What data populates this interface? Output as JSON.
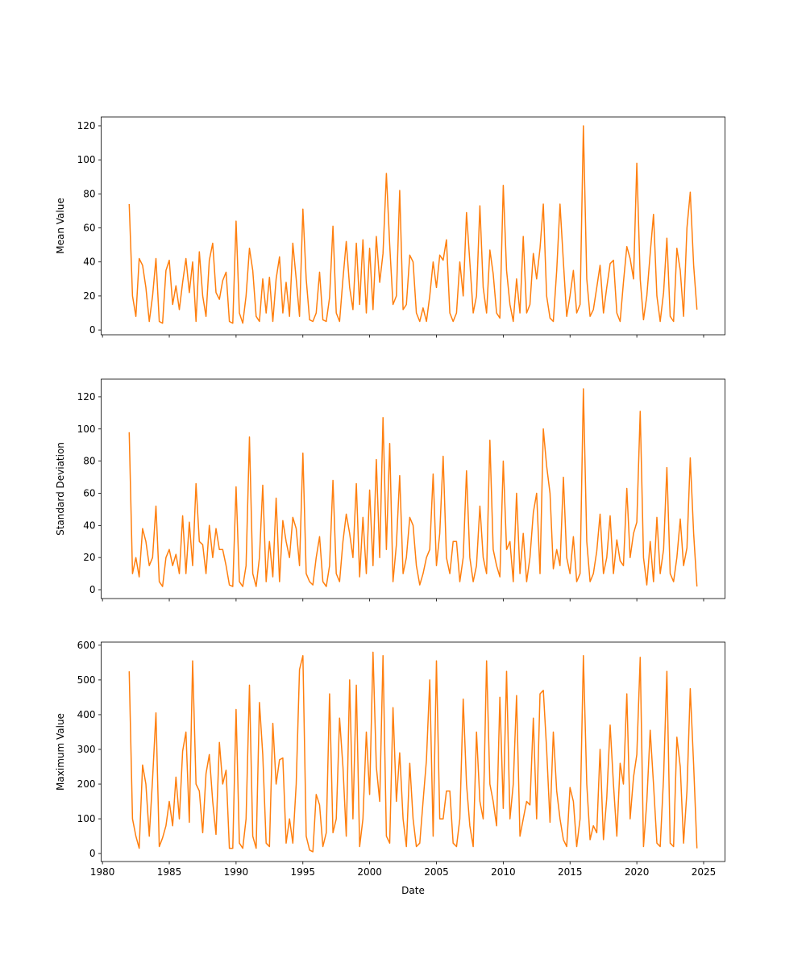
{
  "chart_data": {
    "type": "line",
    "layout": "3 stacked subplots, shared x-axis",
    "line_color": "#ff7f0e",
    "grid": false,
    "xlabel": "Date",
    "x_ticks": [
      "1980",
      "1985",
      "1990",
      "1995",
      "2000",
      "2005",
      "2010",
      "2015",
      "2020",
      "2025"
    ],
    "xlim": [
      1979.9,
      2026.6
    ],
    "dates": [
      "1982-01",
      "1982-04",
      "1982-07",
      "1982-10",
      "1983-01",
      "1983-04",
      "1983-07",
      "1983-10",
      "1984-01",
      "1984-04",
      "1984-07",
      "1984-10",
      "1985-01",
      "1985-04",
      "1985-07",
      "1985-10",
      "1986-01",
      "1986-04",
      "1986-07",
      "1986-10",
      "1987-01",
      "1987-04",
      "1987-07",
      "1987-10",
      "1988-01",
      "1988-04",
      "1988-07",
      "1988-10",
      "1989-01",
      "1989-04",
      "1989-07",
      "1989-10",
      "1990-01",
      "1990-04",
      "1990-07",
      "1990-10",
      "1991-01",
      "1991-04",
      "1991-07",
      "1991-10",
      "1992-01",
      "1992-04",
      "1992-07",
      "1992-10",
      "1993-01",
      "1993-04",
      "1993-07",
      "1993-10",
      "1994-01",
      "1994-04",
      "1994-07",
      "1994-10",
      "1995-01",
      "1995-04",
      "1995-07",
      "1995-10",
      "1996-01",
      "1996-04",
      "1996-07",
      "1996-10",
      "1997-01",
      "1997-04",
      "1997-07",
      "1997-10",
      "1998-01",
      "1998-04",
      "1998-07",
      "1998-10",
      "1999-01",
      "1999-04",
      "1999-07",
      "1999-10",
      "2000-01",
      "2000-04",
      "2000-07",
      "2000-10",
      "2001-01",
      "2001-04",
      "2001-07",
      "2001-10",
      "2002-01",
      "2002-04",
      "2002-07",
      "2002-10",
      "2003-01",
      "2003-04",
      "2003-07",
      "2003-10",
      "2004-01",
      "2004-04",
      "2004-07",
      "2004-10",
      "2005-01",
      "2005-04",
      "2005-07",
      "2005-10",
      "2006-01",
      "2006-04",
      "2006-07",
      "2006-10",
      "2007-01",
      "2007-04",
      "2007-07",
      "2007-10",
      "2008-01",
      "2008-04",
      "2008-07",
      "2008-10",
      "2009-01",
      "2009-04",
      "2009-07",
      "2009-10",
      "2010-01",
      "2010-04",
      "2010-07",
      "2010-10",
      "2011-01",
      "2011-04",
      "2011-07",
      "2011-10",
      "2012-01",
      "2012-04",
      "2012-07",
      "2012-10",
      "2013-01",
      "2013-04",
      "2013-07",
      "2013-10",
      "2014-01",
      "2014-04",
      "2014-07",
      "2014-10",
      "2015-01",
      "2015-04",
      "2015-07",
      "2015-10",
      "2016-01",
      "2016-04",
      "2016-07",
      "2016-10",
      "2017-01",
      "2017-04",
      "2017-07",
      "2017-10",
      "2018-01",
      "2018-04",
      "2018-07",
      "2018-10",
      "2019-01",
      "2019-04",
      "2019-07",
      "2019-10",
      "2020-01",
      "2020-04",
      "2020-07",
      "2020-10",
      "2021-01",
      "2021-04",
      "2021-07",
      "2021-10",
      "2022-01",
      "2022-04",
      "2022-07",
      "2022-10",
      "2023-01",
      "2023-04",
      "2023-07",
      "2023-10",
      "2024-01",
      "2024-04",
      "2024-07"
    ],
    "panels": [
      {
        "ylabel": "Mean Value",
        "ylim": [
          -2.8,
          125.2
        ],
        "y_ticks": [
          "0",
          "20",
          "40",
          "60",
          "80",
          "100",
          "120"
        ],
        "values": [
          74,
          20,
          8,
          42,
          38,
          25,
          5,
          20,
          42,
          5,
          4,
          35,
          41,
          15,
          26,
          12,
          28,
          42,
          22,
          40,
          5,
          46,
          20,
          8,
          41,
          51,
          22,
          18,
          29,
          34,
          5,
          4,
          64,
          10,
          4,
          20,
          48,
          35,
          8,
          5,
          30,
          10,
          31,
          5,
          30,
          43,
          10,
          28,
          8,
          51,
          30,
          8,
          71,
          30,
          6,
          5,
          10,
          34,
          6,
          5,
          19,
          61,
          10,
          5,
          30,
          52,
          25,
          12,
          51,
          15,
          53,
          10,
          48,
          12,
          55,
          28,
          45,
          92,
          50,
          15,
          20,
          82,
          12,
          15,
          44,
          40,
          10,
          5,
          13,
          5,
          20,
          40,
          25,
          44,
          41,
          53,
          10,
          5,
          10,
          40,
          20,
          69,
          40,
          10,
          20,
          73,
          25,
          10,
          47,
          33,
          10,
          7,
          85,
          35,
          15,
          5,
          30,
          10,
          55,
          10,
          15,
          45,
          30,
          48,
          74,
          20,
          7,
          5,
          35,
          74,
          40,
          8,
          20,
          35,
          10,
          15,
          120,
          30,
          8,
          12,
          25,
          38,
          10,
          25,
          39,
          41,
          10,
          5,
          28,
          49,
          42,
          30,
          98,
          30,
          6,
          20,
          45,
          68,
          20,
          5,
          22,
          54,
          8,
          5,
          48,
          35,
          8,
          60,
          81,
          38,
          12
        ]
      },
      {
        "ylabel": "Standard Deviation",
        "ylim": [
          -5.5,
          131
        ],
        "y_ticks": [
          "0",
          "20",
          "40",
          "60",
          "80",
          "100",
          "120"
        ],
        "values": [
          98,
          10,
          20,
          8,
          38,
          30,
          15,
          20,
          52,
          5,
          2,
          20,
          25,
          15,
          22,
          10,
          46,
          10,
          42,
          15,
          66,
          30,
          28,
          10,
          40,
          20,
          38,
          25,
          25,
          15,
          3,
          2,
          64,
          5,
          2,
          15,
          95,
          10,
          2,
          20,
          65,
          5,
          30,
          8,
          57,
          5,
          43,
          30,
          20,
          45,
          38,
          15,
          85,
          10,
          5,
          3,
          20,
          33,
          5,
          2,
          15,
          68,
          10,
          5,
          30,
          47,
          35,
          20,
          66,
          8,
          45,
          10,
          62,
          15,
          81,
          20,
          107,
          25,
          91,
          5,
          28,
          71,
          10,
          20,
          45,
          40,
          15,
          3,
          10,
          20,
          25,
          72,
          15,
          35,
          83,
          20,
          10,
          30,
          30,
          5,
          20,
          74,
          20,
          5,
          15,
          52,
          20,
          10,
          93,
          25,
          15,
          8,
          80,
          25,
          30,
          5,
          60,
          10,
          35,
          5,
          20,
          48,
          60,
          10,
          100,
          77,
          60,
          13,
          25,
          15,
          70,
          20,
          10,
          33,
          5,
          10,
          125,
          30,
          5,
          10,
          24,
          47,
          10,
          20,
          46,
          10,
          31,
          18,
          15,
          63,
          20,
          35,
          42,
          111,
          20,
          3,
          30,
          5,
          45,
          10,
          25,
          76,
          10,
          5,
          20,
          44,
          15,
          26,
          82,
          35,
          2
        ]
      },
      {
        "ylabel": "Maximum Value",
        "ylim": [
          -23,
          609
        ],
        "y_ticks": [
          "0",
          "100",
          "200",
          "300",
          "400",
          "500",
          "600"
        ],
        "values": [
          525,
          100,
          50,
          15,
          255,
          200,
          50,
          215,
          405,
          20,
          45,
          80,
          150,
          80,
          220,
          100,
          295,
          350,
          90,
          555,
          200,
          180,
          60,
          230,
          285,
          150,
          55,
          320,
          200,
          240,
          15,
          15,
          415,
          30,
          15,
          100,
          485,
          50,
          15,
          435,
          285,
          30,
          20,
          375,
          200,
          270,
          275,
          30,
          100,
          30,
          200,
          530,
          570,
          50,
          10,
          5,
          170,
          140,
          20,
          60,
          460,
          60,
          100,
          390,
          250,
          50,
          500,
          100,
          485,
          20,
          100,
          350,
          170,
          580,
          250,
          150,
          570,
          50,
          30,
          420,
          150,
          290,
          100,
          20,
          260,
          100,
          20,
          30,
          150,
          270,
          500,
          50,
          555,
          100,
          100,
          180,
          180,
          30,
          20,
          100,
          445,
          200,
          80,
          20,
          350,
          150,
          100,
          555,
          200,
          150,
          80,
          450,
          130,
          525,
          100,
          200,
          455,
          50,
          100,
          150,
          140,
          390,
          100,
          460,
          470,
          300,
          90,
          350,
          180,
          100,
          40,
          20,
          190,
          150,
          20,
          100,
          570,
          200,
          40,
          80,
          60,
          300,
          40,
          160,
          370,
          200,
          50,
          260,
          200,
          460,
          100,
          220,
          285,
          565,
          20,
          150,
          355,
          200,
          30,
          20,
          220,
          525,
          30,
          20,
          335,
          250,
          30,
          180,
          475,
          255,
          15
        ]
      }
    ]
  }
}
